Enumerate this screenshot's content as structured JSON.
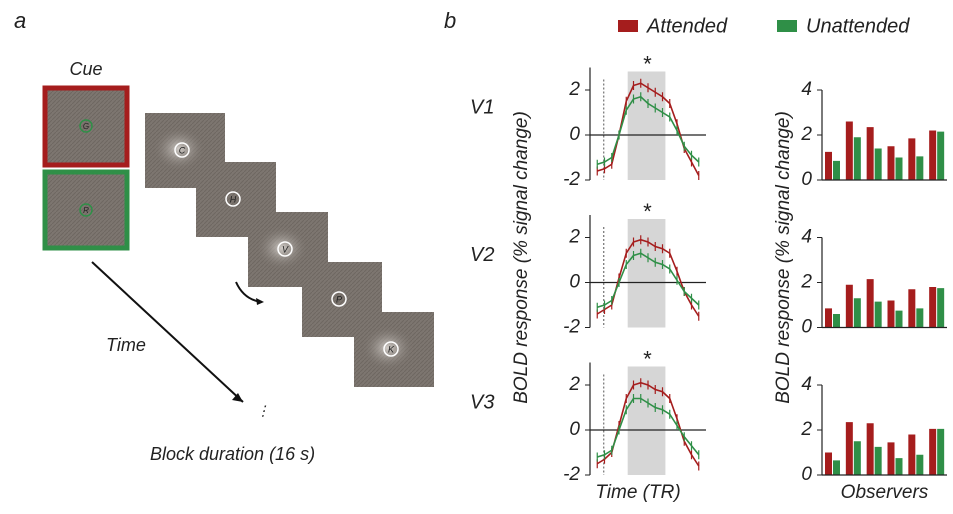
{
  "panel_a": {
    "label": "a",
    "cue": "Cue",
    "cue_letters": [
      "G",
      "R"
    ],
    "letters": [
      "C",
      "H",
      "V",
      "P",
      "K"
    ],
    "time": "Time",
    "block_duration": "Block duration (16 s)"
  },
  "panel_b": {
    "label": "b",
    "legend": [
      {
        "name": "Attended",
        "color": "#a51d1d"
      },
      {
        "name": "Unattended",
        "color": "#2f8f47"
      }
    ]
  },
  "chart_data": [
    {
      "type": "line",
      "title": "V1",
      "annotation": "*",
      "x": [
        1,
        2,
        3,
        4,
        5,
        6,
        7,
        8,
        9,
        10,
        11,
        12,
        13,
        14,
        15
      ],
      "xlim": [
        0,
        16
      ],
      "ylim": [
        -2,
        3
      ],
      "yticks": [
        -2,
        0,
        2
      ],
      "shade_x": [
        5.2,
        10.4
      ],
      "onset_x": 1.9,
      "series": [
        {
          "color": "#a51d1d",
          "values": [
            -1.6,
            -1.5,
            -1.3,
            0.0,
            1.5,
            2.2,
            2.3,
            2.1,
            1.9,
            1.7,
            1.4,
            0.5,
            -0.6,
            -1.2,
            -1.8
          ],
          "errors": [
            0.2,
            0.2,
            0.2,
            0.2,
            0.2,
            0.2,
            0.2,
            0.2,
            0.2,
            0.2,
            0.2,
            0.2,
            0.2,
            0.2,
            0.2
          ]
        },
        {
          "color": "#2f8f47",
          "values": [
            -1.3,
            -1.2,
            -1.0,
            0.0,
            1.1,
            1.6,
            1.7,
            1.4,
            1.2,
            1.0,
            0.8,
            0.2,
            -0.5,
            -0.9,
            -1.2
          ],
          "errors": [
            0.2,
            0.2,
            0.2,
            0.2,
            0.2,
            0.2,
            0.2,
            0.2,
            0.2,
            0.2,
            0.2,
            0.2,
            0.2,
            0.2,
            0.2
          ]
        }
      ]
    },
    {
      "type": "line",
      "title": "V2",
      "annotation": "*",
      "ylabel": "BOLD response (% signal change)",
      "x": [
        1,
        2,
        3,
        4,
        5,
        6,
        7,
        8,
        9,
        10,
        11,
        12,
        13,
        14,
        15
      ],
      "xlim": [
        0,
        16
      ],
      "ylim": [
        -2,
        3
      ],
      "yticks": [
        -2,
        0,
        2
      ],
      "shade_x": [
        5.2,
        10.4
      ],
      "onset_x": 1.9,
      "series": [
        {
          "color": "#a51d1d",
          "values": [
            -1.4,
            -1.2,
            -1.0,
            0.2,
            1.3,
            1.8,
            1.9,
            1.8,
            1.6,
            1.5,
            1.3,
            0.5,
            -0.4,
            -1.0,
            -1.5
          ],
          "errors": [
            0.2,
            0.2,
            0.2,
            0.2,
            0.2,
            0.2,
            0.2,
            0.2,
            0.2,
            0.2,
            0.2,
            0.2,
            0.2,
            0.2,
            0.2
          ]
        },
        {
          "color": "#2f8f47",
          "values": [
            -1.1,
            -1.0,
            -0.8,
            0.0,
            0.8,
            1.2,
            1.3,
            1.1,
            0.9,
            0.8,
            0.6,
            0.1,
            -0.4,
            -0.7,
            -1.0
          ],
          "errors": [
            0.2,
            0.2,
            0.2,
            0.2,
            0.2,
            0.2,
            0.2,
            0.2,
            0.2,
            0.2,
            0.2,
            0.2,
            0.2,
            0.2,
            0.2
          ]
        }
      ]
    },
    {
      "type": "line",
      "title": "V3",
      "annotation": "*",
      "xlabel": "Time (TR)",
      "x": [
        1,
        2,
        3,
        4,
        5,
        6,
        7,
        8,
        9,
        10,
        11,
        12,
        13,
        14,
        15
      ],
      "xlim": [
        0,
        16
      ],
      "ylim": [
        -2,
        3
      ],
      "yticks": [
        -2,
        0,
        2
      ],
      "shade_x": [
        5.2,
        10.4
      ],
      "onset_x": 1.9,
      "series": [
        {
          "color": "#a51d1d",
          "values": [
            -1.5,
            -1.3,
            -1.0,
            0.2,
            1.4,
            2.0,
            2.1,
            2.0,
            1.8,
            1.7,
            1.4,
            0.5,
            -0.5,
            -1.1,
            -1.6
          ],
          "errors": [
            0.2,
            0.2,
            0.2,
            0.2,
            0.2,
            0.2,
            0.2,
            0.2,
            0.2,
            0.2,
            0.2,
            0.2,
            0.2,
            0.2,
            0.2
          ]
        },
        {
          "color": "#2f8f47",
          "values": [
            -1.2,
            -1.1,
            -0.9,
            0.0,
            0.9,
            1.4,
            1.4,
            1.2,
            1.0,
            0.9,
            0.7,
            0.2,
            -0.3,
            -0.7,
            -1.1
          ],
          "errors": [
            0.2,
            0.2,
            0.2,
            0.2,
            0.2,
            0.2,
            0.2,
            0.2,
            0.2,
            0.2,
            0.2,
            0.2,
            0.2,
            0.2,
            0.2
          ]
        }
      ]
    },
    {
      "type": "bar",
      "categories": [
        null,
        null,
        null,
        null,
        null,
        null
      ],
      "ylim": [
        0,
        4
      ],
      "yticks": [
        0,
        2,
        4
      ],
      "series": [
        {
          "color": "#a51d1d",
          "values": [
            1.25,
            2.6,
            2.35,
            1.5,
            1.85,
            2.2
          ]
        },
        {
          "color": "#2f8f47",
          "values": [
            0.85,
            1.9,
            1.4,
            1.0,
            1.05,
            2.15
          ]
        }
      ]
    },
    {
      "type": "bar",
      "ylabel": "BOLD response (% signal change)",
      "categories": [
        null,
        null,
        null,
        null,
        null,
        null
      ],
      "ylim": [
        0,
        4
      ],
      "yticks": [
        0,
        2,
        4
      ],
      "series": [
        {
          "color": "#a51d1d",
          "values": [
            0.85,
            1.9,
            2.15,
            1.2,
            1.7,
            1.8
          ]
        },
        {
          "color": "#2f8f47",
          "values": [
            0.6,
            1.3,
            1.15,
            0.75,
            0.85,
            1.75
          ]
        }
      ]
    },
    {
      "type": "bar",
      "xlabel": "Observers",
      "categories": [
        null,
        null,
        null,
        null,
        null,
        null
      ],
      "ylim": [
        0,
        4
      ],
      "yticks": [
        0,
        2,
        4
      ],
      "series": [
        {
          "color": "#a51d1d",
          "values": [
            1.0,
            2.35,
            2.3,
            1.45,
            1.8,
            2.05
          ]
        },
        {
          "color": "#2f8f47",
          "values": [
            0.65,
            1.5,
            1.25,
            0.75,
            0.9,
            2.05
          ]
        }
      ]
    }
  ]
}
